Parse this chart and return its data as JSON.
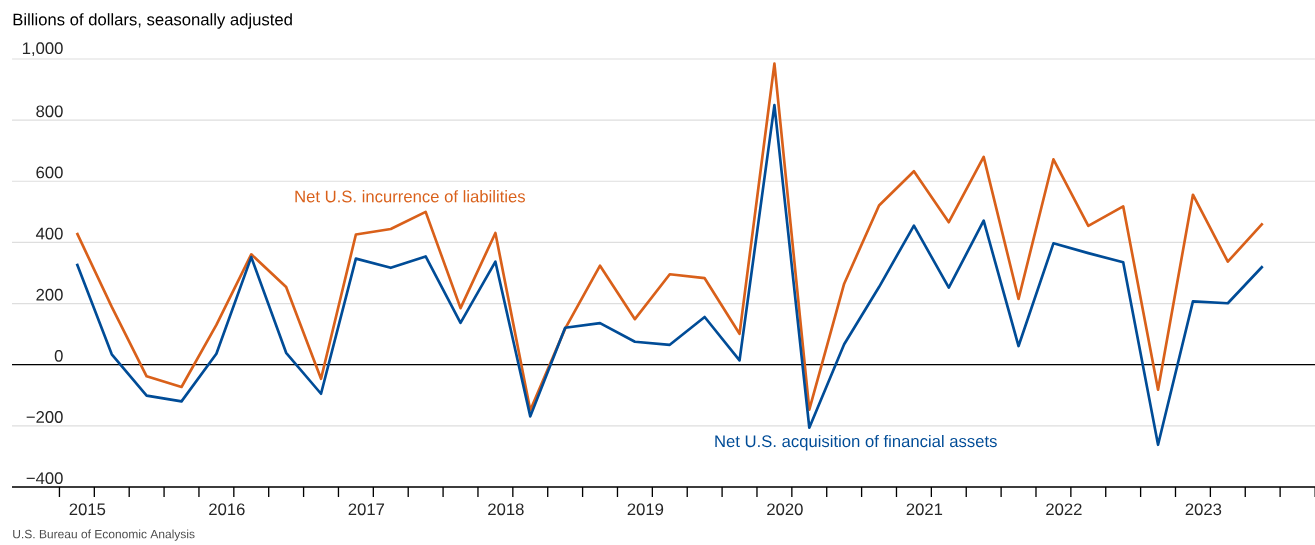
{
  "chart_data": {
    "type": "line",
    "ylabel": "Billions of dollars, seasonally adjusted",
    "x": [
      2015.125,
      2015.375,
      2015.625,
      2015.875,
      2016.125,
      2016.375,
      2016.625,
      2016.875,
      2017.125,
      2017.375,
      2017.625,
      2017.875,
      2018.125,
      2018.375,
      2018.625,
      2018.875,
      2019.125,
      2019.375,
      2019.625,
      2019.875,
      2020.125,
      2020.375,
      2020.625,
      2020.875,
      2021.125,
      2021.375,
      2021.625,
      2021.875,
      2022.125,
      2022.375,
      2022.625,
      2022.875,
      2023.125,
      2023.375,
      2023.625
    ],
    "series": [
      {
        "name": "Net U.S. incurrence of liabilities",
        "color": "#d9601a",
        "values": [
          431,
          189,
          -38,
          -73,
          130,
          361,
          254,
          -46,
          426,
          444,
          500,
          185,
          431,
          -149,
          118,
          324,
          149,
          296,
          283,
          101,
          985,
          -147,
          265,
          521,
          633,
          466,
          680,
          215,
          672,
          454,
          518,
          -82,
          556,
          337,
          462
        ]
      },
      {
        "name": "Net U.S. acquisition of financial assets",
        "color": "#004c97",
        "values": [
          330,
          34,
          -101,
          -120,
          36,
          352,
          39,
          -95,
          347,
          317,
          354,
          137,
          337,
          -169,
          121,
          136,
          75,
          65,
          156,
          14,
          849,
          -206,
          67,
          254,
          455,
          252,
          471,
          61,
          397,
          365,
          335,
          -262,
          207,
          201,
          322
        ]
      }
    ],
    "xlim": [
      2014.66,
      2024
    ],
    "xticks": [
      {
        "value": 2015.2,
        "label": "2015"
      },
      {
        "value": 2016.2,
        "label": "2016"
      },
      {
        "value": 2017.2,
        "label": "2017"
      },
      {
        "value": 2018.2,
        "label": "2018"
      },
      {
        "value": 2019.2,
        "label": "2019"
      },
      {
        "value": 2020.2,
        "label": "2020"
      },
      {
        "value": 2021.2,
        "label": "2021"
      },
      {
        "value": 2022.2,
        "label": "2022"
      },
      {
        "value": 2023.2,
        "label": "2023"
      },
      {
        "value": 2015,
        "label": null
      },
      {
        "value": 2015.25,
        "label": null
      },
      {
        "value": 2015.5,
        "label": null
      },
      {
        "value": 2015.75,
        "label": null
      },
      {
        "value": 2016,
        "label": null
      },
      {
        "value": 2016.25,
        "label": null
      },
      {
        "value": 2016.5,
        "label": null
      },
      {
        "value": 2016.75,
        "label": null
      },
      {
        "value": 2017,
        "label": null
      },
      {
        "value": 2017.25,
        "label": null
      },
      {
        "value": 2017.5,
        "label": null
      },
      {
        "value": 2017.75,
        "label": null
      },
      {
        "value": 2018,
        "label": null
      },
      {
        "value": 2018.25,
        "label": null
      },
      {
        "value": 2018.5,
        "label": null
      },
      {
        "value": 2018.75,
        "label": null
      },
      {
        "value": 2019,
        "label": null
      },
      {
        "value": 2019.25,
        "label": null
      },
      {
        "value": 2019.5,
        "label": null
      },
      {
        "value": 2019.75,
        "label": null
      },
      {
        "value": 2020,
        "label": null
      },
      {
        "value": 2020.25,
        "label": null
      },
      {
        "value": 2020.5,
        "label": null
      },
      {
        "value": 2020.75,
        "label": null
      },
      {
        "value": 2021,
        "label": null
      },
      {
        "value": 2021.25,
        "label": null
      },
      {
        "value": 2021.5,
        "label": null
      },
      {
        "value": 2021.75,
        "label": null
      },
      {
        "value": 2022,
        "label": null
      },
      {
        "value": 2022.25,
        "label": null
      },
      {
        "value": 2022.5,
        "label": null
      },
      {
        "value": 2022.75,
        "label": null
      },
      {
        "value": 2023,
        "label": null
      },
      {
        "value": 2023.25,
        "label": null
      },
      {
        "value": 2023.5,
        "label": null
      },
      {
        "value": 2023.75,
        "label": null
      },
      {
        "value": 2024,
        "label": null
      }
    ],
    "ylim": [
      -400,
      1000
    ],
    "yticks": [
      {
        "value": -400,
        "label": "−400"
      },
      {
        "value": -200,
        "label": "−200"
      },
      0,
      200,
      400,
      600,
      800,
      {
        "value": 1000,
        "label": "1,000"
      }
    ],
    "grid": "y",
    "marker": "none",
    "line_style": "solid",
    "ref_lines": [
      {
        "axis": "y",
        "value": 0,
        "color": "#000000"
      }
    ],
    "annotations": [
      "U.S. Bureau of Economic Analysis"
    ]
  }
}
